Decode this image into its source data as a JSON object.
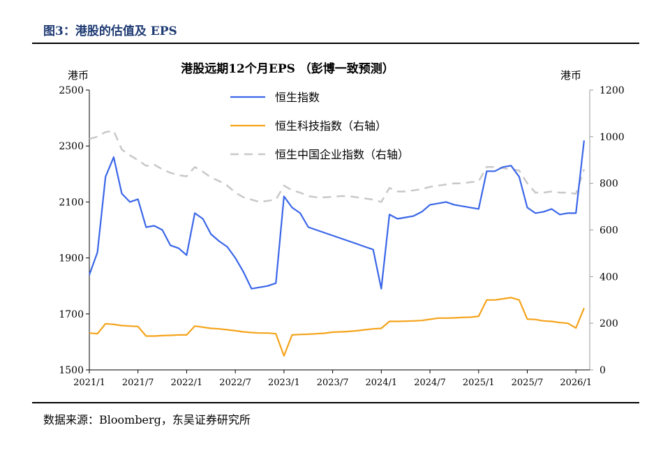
{
  "figure": {
    "label": "图3：港股的估值及 EPS",
    "source": "数据来源：Bloomberg，东吴证券研究所"
  },
  "chart_data": {
    "type": "line",
    "title": "港股远期12个月EPS （彭博一致预测）",
    "y_left_label": "港币",
    "y_right_label": "港币",
    "ylim_left": [
      1500,
      2500
    ],
    "ylim_right": [
      0,
      1200
    ],
    "y_left_ticks": [
      "1500",
      "1700",
      "1900",
      "2100",
      "2300",
      "2500"
    ],
    "y_right_ticks": [
      "0",
      "200",
      "400",
      "600",
      "800",
      "1000",
      "1200"
    ],
    "x_ticks": [
      "2021/1",
      "2021/7",
      "2022/1",
      "2022/7",
      "2023/1",
      "2023/7",
      "2024/1",
      "2024/7",
      "2025/1",
      "2025/7",
      "2026/1"
    ],
    "legend_position": "top-center",
    "colors": {
      "hsi": "#3a66e8",
      "hstech": "#f5a31a",
      "hscei": "#c8c8c8"
    },
    "series": [
      {
        "name": "恒生指数",
        "axis": "left",
        "style": "solid",
        "x": [
          "2021/1",
          "2021/2",
          "2021/3",
          "2021/4",
          "2021/5",
          "2021/6",
          "2021/7",
          "2021/8",
          "2021/9",
          "2021/10",
          "2021/11",
          "2021/12",
          "2022/1",
          "2022/2",
          "2022/3",
          "2022/4",
          "2022/5",
          "2022/6",
          "2022/7",
          "2022/8",
          "2022/9",
          "2022/10",
          "2022/11",
          "2022/12",
          "2023/1",
          "2023/2",
          "2023/3",
          "2023/4",
          "2023/5",
          "2023/6",
          "2023/7",
          "2023/8",
          "2023/9",
          "2023/10",
          "2023/11",
          "2023/12",
          "2024/1",
          "2024/2",
          "2024/3",
          "2024/4",
          "2024/5",
          "2024/6",
          "2024/7",
          "2024/8",
          "2024/9",
          "2024/10",
          "2024/11",
          "2024/12",
          "2025/1",
          "2025/2",
          "2025/3",
          "2025/4",
          "2025/5",
          "2025/6",
          "2025/7",
          "2025/8",
          "2025/9",
          "2025/10",
          "2025/11",
          "2025/12",
          "2026/1",
          "2026/2"
        ],
        "values": [
          1840,
          1920,
          2190,
          2260,
          2130,
          2100,
          2110,
          2010,
          2015,
          2000,
          1945,
          1935,
          1910,
          2060,
          2040,
          1985,
          1960,
          1940,
          1900,
          1850,
          1790,
          1795,
          1800,
          1810,
          2120,
          2080,
          2060,
          2010,
          2000,
          1990,
          1980,
          1970,
          1960,
          1950,
          1940,
          1930,
          1790,
          2055,
          2040,
          2045,
          2050,
          2065,
          2090,
          2095,
          2100,
          2090,
          2085,
          2080,
          2075,
          2210,
          2210,
          2225,
          2230,
          2190,
          2080,
          2060,
          2065,
          2075,
          2055,
          2060,
          2060,
          2320
        ]
      },
      {
        "name": "恒生科技指数（右轴）",
        "axis": "right",
        "style": "solid",
        "x": [
          "2021/1",
          "2021/2",
          "2021/3",
          "2021/4",
          "2021/5",
          "2021/6",
          "2021/7",
          "2021/8",
          "2021/9",
          "2021/10",
          "2021/11",
          "2021/12",
          "2022/1",
          "2022/2",
          "2022/3",
          "2022/4",
          "2022/5",
          "2022/6",
          "2022/7",
          "2022/8",
          "2022/9",
          "2022/10",
          "2022/11",
          "2022/12",
          "2023/1",
          "2023/2",
          "2023/3",
          "2023/4",
          "2023/5",
          "2023/6",
          "2023/7",
          "2023/8",
          "2023/9",
          "2023/10",
          "2023/11",
          "2023/12",
          "2024/1",
          "2024/2",
          "2024/3",
          "2024/4",
          "2024/5",
          "2024/6",
          "2024/7",
          "2024/8",
          "2024/9",
          "2024/10",
          "2024/11",
          "2024/12",
          "2025/1",
          "2025/2",
          "2025/3",
          "2025/4",
          "2025/5",
          "2025/6",
          "2025/7",
          "2025/8",
          "2025/9",
          "2025/10",
          "2025/11",
          "2025/12",
          "2026/1",
          "2026/2"
        ],
        "values": [
          158,
          155,
          198,
          195,
          190,
          188,
          186,
          145,
          145,
          147,
          148,
          150,
          150,
          188,
          183,
          178,
          176,
          172,
          168,
          163,
          160,
          158,
          158,
          155,
          60,
          150,
          152,
          153,
          155,
          157,
          162,
          163,
          165,
          168,
          172,
          176,
          178,
          208,
          208,
          209,
          210,
          212,
          217,
          222,
          222,
          223,
          225,
          226,
          230,
          300,
          300,
          305,
          310,
          300,
          218,
          216,
          210,
          208,
          203,
          200,
          180,
          265
        ]
      },
      {
        "name": "恒生中国企业指数（右轴）",
        "axis": "right",
        "style": "dashed",
        "x": [
          "2021/1",
          "2021/2",
          "2021/3",
          "2021/4",
          "2021/5",
          "2021/6",
          "2021/7",
          "2021/8",
          "2021/9",
          "2021/10",
          "2021/11",
          "2021/12",
          "2022/1",
          "2022/2",
          "2022/3",
          "2022/4",
          "2022/5",
          "2022/6",
          "2022/7",
          "2022/8",
          "2022/9",
          "2022/10",
          "2022/11",
          "2022/12",
          "2023/1",
          "2023/2",
          "2023/3",
          "2023/4",
          "2023/5",
          "2023/6",
          "2023/7",
          "2023/8",
          "2023/9",
          "2023/10",
          "2023/11",
          "2023/12",
          "2024/1",
          "2024/2",
          "2024/3",
          "2024/4",
          "2024/5",
          "2024/6",
          "2024/7",
          "2024/8",
          "2024/9",
          "2024/10",
          "2024/11",
          "2024/12",
          "2025/1",
          "2025/2",
          "2025/3",
          "2025/4",
          "2025/5",
          "2025/6",
          "2025/7",
          "2025/8",
          "2025/9",
          "2025/10",
          "2025/11",
          "2025/12",
          "2026/1",
          "2026/2"
        ],
        "values": [
          990,
          1000,
          1020,
          1025,
          945,
          920,
          900,
          875,
          880,
          860,
          845,
          835,
          830,
          870,
          850,
          825,
          810,
          790,
          760,
          740,
          730,
          720,
          725,
          730,
          790,
          770,
          760,
          745,
          740,
          740,
          742,
          745,
          745,
          740,
          735,
          730,
          720,
          780,
          765,
          765,
          770,
          775,
          785,
          790,
          795,
          800,
          800,
          805,
          808,
          870,
          870,
          865,
          860,
          855,
          800,
          760,
          760,
          765,
          760,
          760,
          755,
          860
        ]
      }
    ]
  }
}
